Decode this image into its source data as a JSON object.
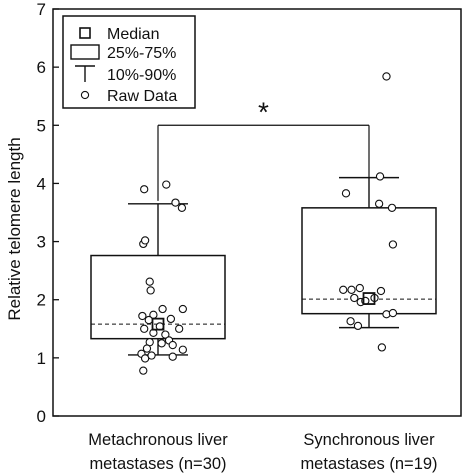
{
  "chart_data": {
    "type": "box",
    "ylabel": "Relative telomere length",
    "ylim": [
      0,
      7
    ],
    "yticks": [
      "0",
      "1",
      "2",
      "3",
      "4",
      "5",
      "6",
      "7"
    ],
    "grid": false,
    "legend_placement": "top-left",
    "legend": [
      {
        "symbol": "median-square",
        "label": "Median"
      },
      {
        "symbol": "box",
        "label": "25%-75%"
      },
      {
        "symbol": "whisker",
        "label": "10%-90%"
      },
      {
        "symbol": "circle",
        "label": "Raw Data"
      }
    ],
    "significance": {
      "label": "*",
      "between": [
        0,
        1
      ],
      "bracket_y": 5.0,
      "drop_to": [
        3.7,
        4.1
      ]
    },
    "groups": [
      {
        "label_lines": [
          "Metachronous liver",
          "metastases (n=30)"
        ],
        "q1": 1.33,
        "median": 1.58,
        "q3": 2.76,
        "p10": 1.05,
        "p90": 3.65,
        "median_line": 1.58,
        "raw": [
          {
            "dx": -0.17,
            "y": 1.72
          },
          {
            "dx": -0.05,
            "y": 1.74
          },
          {
            "dx": 0.05,
            "y": 1.84
          },
          {
            "dx": 0.27,
            "y": 1.84
          },
          {
            "dx": -0.1,
            "y": 1.65
          },
          {
            "dx": 0.02,
            "y": 1.54
          },
          {
            "dx": 0.14,
            "y": 1.67
          },
          {
            "dx": -0.15,
            "y": 1.5
          },
          {
            "dx": 0.23,
            "y": 1.5
          },
          {
            "dx": -0.05,
            "y": 1.43
          },
          {
            "dx": 0.08,
            "y": 1.4
          },
          {
            "dx": -0.09,
            "y": 1.27
          },
          {
            "dx": 0.04,
            "y": 1.25
          },
          {
            "dx": 0.12,
            "y": 1.3
          },
          {
            "dx": 0.16,
            "y": 1.22
          },
          {
            "dx": -0.12,
            "y": 1.16
          },
          {
            "dx": 0.27,
            "y": 1.14
          },
          {
            "dx": -0.18,
            "y": 1.07
          },
          {
            "dx": -0.14,
            "y": 0.99
          },
          {
            "dx": -0.07,
            "y": 1.04
          },
          {
            "dx": 0.16,
            "y": 1.02
          },
          {
            "dx": -0.16,
            "y": 0.78
          },
          {
            "dx": -0.08,
            "y": 2.16
          },
          {
            "dx": -0.09,
            "y": 2.31
          },
          {
            "dx": -0.16,
            "y": 2.96
          },
          {
            "dx": -0.14,
            "y": 3.02
          },
          {
            "dx": -0.15,
            "y": 3.9
          },
          {
            "dx": 0.09,
            "y": 3.98
          },
          {
            "dx": 0.19,
            "y": 3.67
          },
          {
            "dx": 0.26,
            "y": 3.58
          }
        ]
      },
      {
        "label_lines": [
          "Synchronous liver",
          "metastases (n=19)"
        ],
        "q1": 1.76,
        "median": 2.02,
        "q3": 3.58,
        "p10": 1.52,
        "p90": 4.1,
        "median_line": 2.01,
        "raw": [
          {
            "dx": 0.19,
            "y": 5.84
          },
          {
            "dx": 0.12,
            "y": 4.12
          },
          {
            "dx": -0.25,
            "y": 3.83
          },
          {
            "dx": 0.11,
            "y": 3.65
          },
          {
            "dx": 0.25,
            "y": 3.58
          },
          {
            "dx": 0.26,
            "y": 2.95
          },
          {
            "dx": -0.28,
            "y": 2.17
          },
          {
            "dx": -0.19,
            "y": 2.17
          },
          {
            "dx": -0.1,
            "y": 2.2
          },
          {
            "dx": 0.13,
            "y": 2.15
          },
          {
            "dx": -0.16,
            "y": 2.03
          },
          {
            "dx": -0.09,
            "y": 1.96
          },
          {
            "dx": 0.06,
            "y": 2.03
          },
          {
            "dx": -0.04,
            "y": 1.98
          },
          {
            "dx": 0.19,
            "y": 1.75
          },
          {
            "dx": 0.26,
            "y": 1.77
          },
          {
            "dx": -0.2,
            "y": 1.63
          },
          {
            "dx": -0.12,
            "y": 1.55
          },
          {
            "dx": 0.14,
            "y": 1.18
          }
        ]
      }
    ]
  }
}
